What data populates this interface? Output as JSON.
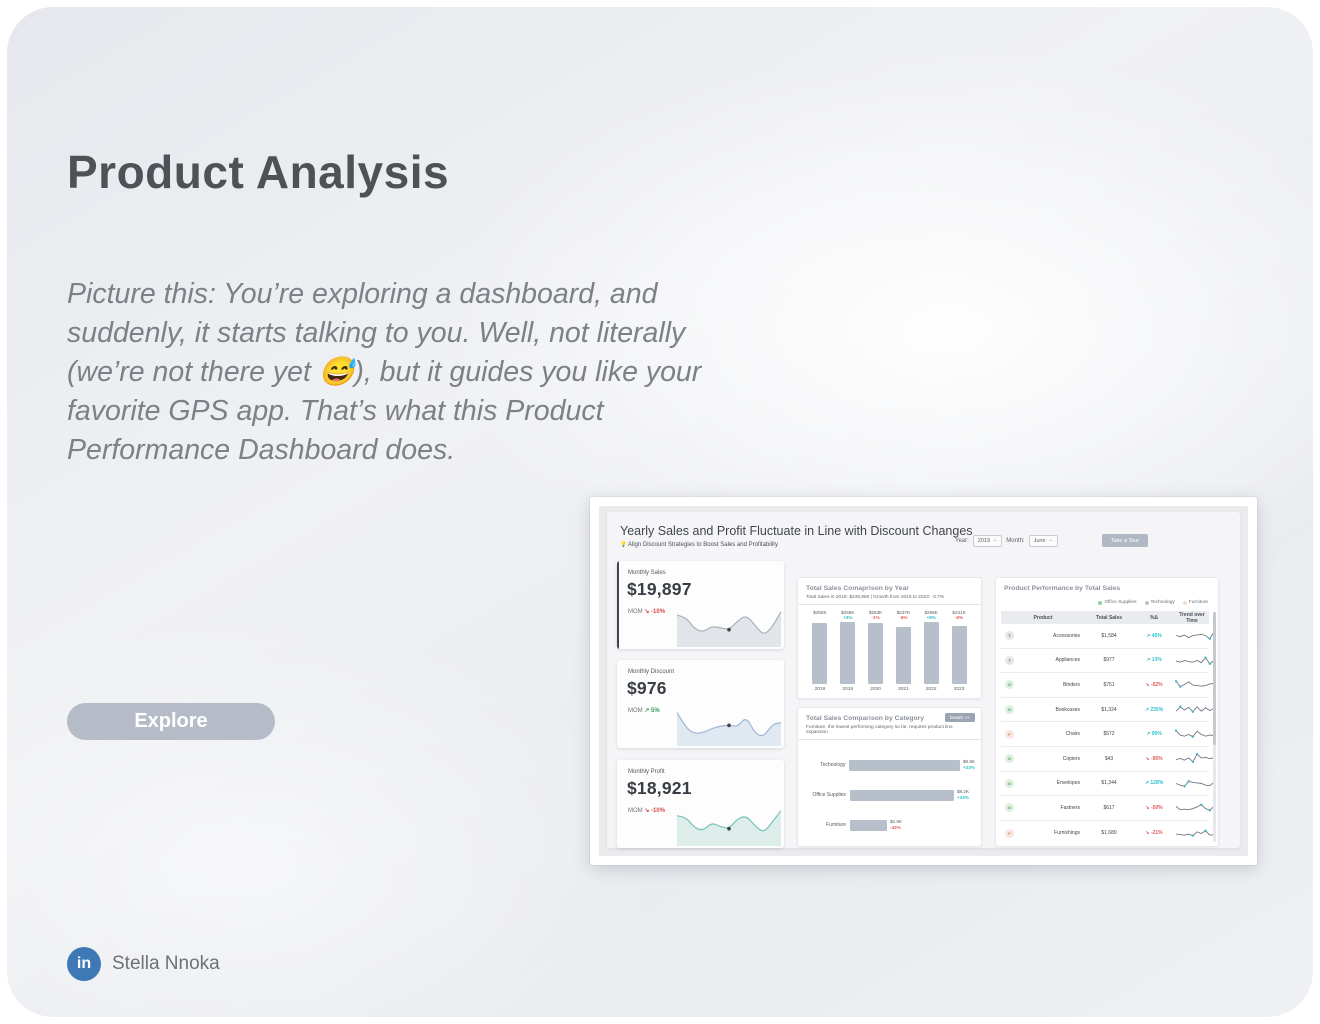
{
  "page": {
    "title": "Product Analysis",
    "paragraph": "Picture this: You’re exploring a dashboard, and suddenly, it starts talking to you. Well, not literally (we’re not there yet 😅), but it guides you like your favorite GPS app. That’s what this Product Performance Dashboard does.",
    "explore_label": "Explore",
    "footer": {
      "author": "Stella Nnoka",
      "linkedin_glyph": "in"
    }
  },
  "dashboard": {
    "title": "Yearly Sales and Profit Fluctuate in Line with Discount Changes",
    "lightbulb_icon": "💡",
    "subtitle": "Align Discount Strategies to Boost Sales and Profitability",
    "filters": {
      "year_label": "Year:",
      "year_value": "2019",
      "month_label": "Month:",
      "month_value": "June",
      "chevron": "⌄"
    },
    "tour_button": "Take a Tour",
    "colors": {
      "up_teal": "#2ec0cd",
      "down_red": "#e05a5a",
      "green": "#33a05e",
      "red": "#d64949",
      "bar": "#b6bfca"
    },
    "kpis": [
      {
        "label": "Monthly Sales",
        "value": "$19,897",
        "mom_label": "MOM",
        "arrow": "↘",
        "delta": "-10%",
        "trend": "down",
        "accent": true,
        "line_color": "#a9b2bc",
        "fill_color": "#e1e5e9",
        "spark": [
          0.85,
          0.8,
          0.45,
          0.35,
          0.52,
          0.48,
          0.42,
          0.68,
          0.85,
          0.55,
          0.25,
          0.5,
          0.95
        ]
      },
      {
        "label": "Monthly Discount",
        "value": "$976",
        "mom_label": "MOM",
        "arrow": "↗",
        "delta": "5%",
        "trend": "up",
        "accent": false,
        "line_color": "#9fb4d4",
        "fill_color": "#e0e8f2",
        "spark": [
          0.9,
          0.45,
          0.28,
          0.3,
          0.42,
          0.5,
          0.52,
          0.48,
          0.78,
          0.28,
          0.18,
          0.55,
          0.6
        ]
      },
      {
        "label": "Monthly Profit",
        "value": "$18,921",
        "mom_label": "MOM",
        "arrow": "↘",
        "delta": "-10%",
        "trend": "down",
        "accent": false,
        "line_color": "#77c2ba",
        "fill_color": "#dcedea",
        "spark": [
          0.8,
          0.78,
          0.45,
          0.36,
          0.6,
          0.48,
          0.42,
          0.72,
          0.8,
          0.5,
          0.3,
          0.62,
          0.95
        ]
      }
    ],
    "chart_data": [
      {
        "type": "bar",
        "title": "Total Sales Comaprison by Year",
        "subtitle": "Total Sales in 2018: $249,859 | Growth from 2018 to 2023: -3.7%",
        "categories": [
          "2018",
          "2019",
          "2020",
          "2021",
          "2022",
          "2023"
        ],
        "values": [
          250,
          256,
          253,
          237,
          255,
          241
        ],
        "value_labels": [
          "$250K",
          "$256K",
          "$253K",
          "$237K",
          "$255K",
          "$241K"
        ],
        "deltas": [
          "",
          "+3%",
          "-1%",
          "-6%",
          "+8%",
          "-6%"
        ],
        "delta_dirs": [
          "",
          "up",
          "down",
          "down",
          "up",
          "down"
        ],
        "ylim": [
          0,
          260
        ],
        "unit": "K USD",
        "grid": false,
        "legend": "none"
      },
      {
        "type": "bar-horizontal",
        "title": "Total Sales Comparison by Category",
        "subtitle": "Furniture, the lowest performing category so far, requires product line expansion",
        "details_button": "Details >>",
        "categories": [
          "Technology",
          "Office Supplies",
          "Furniture"
        ],
        "values": [
          8.8,
          8.2,
          2.9
        ],
        "value_labels": [
          "$8.8K",
          "$8.2K",
          "$2.9K"
        ],
        "deltas": [
          "+23%",
          "+33%",
          "-42%"
        ],
        "delta_dirs": [
          "up",
          "up",
          "down"
        ],
        "xlim": [
          0,
          9
        ],
        "unit": "K USD",
        "grid": false
      },
      {
        "type": "table",
        "title": "Product Performance by Total Sales",
        "legend": [
          {
            "label": "Office Supplies",
            "color": "#8fd19e"
          },
          {
            "label": "Technology",
            "color": "#b9c2cc"
          },
          {
            "label": "Furniture",
            "color": "#f3dcc8"
          }
        ],
        "columns": [
          "Product",
          "Total Sales",
          "%Δ",
          "Trend over Time"
        ],
        "rows": [
          {
            "badge": "T",
            "badge_type": "t",
            "product": "Accessories",
            "total_sales": "$1,584",
            "arrow": "↗",
            "delta": "45%",
            "dir": "up",
            "trend": [
              0.5,
              0.4,
              0.55,
              0.3,
              0.5,
              0.55,
              0.6,
              0.5,
              0.2,
              0.85
            ]
          },
          {
            "badge": "T",
            "badge_type": "t",
            "product": "Appliances",
            "total_sales": "$977",
            "arrow": "↗",
            "delta": "13%",
            "dir": "up",
            "trend": [
              0.45,
              0.35,
              0.5,
              0.4,
              0.35,
              0.5,
              0.3,
              0.75,
              0.2,
              0.5
            ]
          },
          {
            "badge": "O",
            "badge_type": "o",
            "product": "Binders",
            "total_sales": "$761",
            "arrow": "↘",
            "delta": "-52%",
            "dir": "down",
            "trend": [
              0.8,
              0.3,
              0.5,
              0.75,
              0.45,
              0.4,
              0.35,
              0.4,
              0.55,
              0.6
            ]
          },
          {
            "badge": "O",
            "badge_type": "o",
            "product": "Bookcases",
            "total_sales": "$1,324",
            "arrow": "↗",
            "delta": "235%",
            "dir": "up",
            "trend": [
              0.35,
              0.75,
              0.45,
              0.7,
              0.3,
              0.75,
              0.35,
              0.65,
              0.4,
              0.6
            ]
          },
          {
            "badge": "F",
            "badge_type": "f",
            "product": "Chairs",
            "total_sales": "$572",
            "arrow": "↗",
            "delta": "95%",
            "dir": "up",
            "trend": [
              0.85,
              0.45,
              0.35,
              0.5,
              0.3,
              0.8,
              0.5,
              0.35,
              0.45,
              0.4
            ]
          },
          {
            "badge": "O",
            "badge_type": "o",
            "product": "Copiers",
            "total_sales": "$43",
            "arrow": "↘",
            "delta": "-95%",
            "dir": "down",
            "trend": [
              0.4,
              0.5,
              0.35,
              0.55,
              0.2,
              0.9,
              0.55,
              0.6,
              0.5,
              0.55
            ]
          },
          {
            "badge": "O",
            "badge_type": "o",
            "product": "Envelopes",
            "total_sales": "$1,344",
            "arrow": "↗",
            "delta": "128%",
            "dir": "up",
            "trend": [
              0.5,
              0.35,
              0.25,
              0.7,
              0.6,
              0.55,
              0.5,
              0.35,
              0.3,
              0.6
            ]
          },
          {
            "badge": "O",
            "badge_type": "o",
            "product": "Fastners",
            "total_sales": "$617",
            "arrow": "↘",
            "delta": "-50%",
            "dir": "down",
            "trend": [
              0.6,
              0.3,
              0.35,
              0.3,
              0.4,
              0.55,
              0.75,
              0.4,
              0.25,
              0.6
            ]
          },
          {
            "badge": "F",
            "badge_type": "f",
            "product": "Furnishings",
            "total_sales": "$1,680",
            "arrow": "↘",
            "delta": "-21%",
            "dir": "down",
            "trend": [
              0.45,
              0.4,
              0.35,
              0.45,
              0.3,
              0.65,
              0.5,
              0.75,
              0.35,
              0.4
            ]
          }
        ]
      }
    ]
  }
}
